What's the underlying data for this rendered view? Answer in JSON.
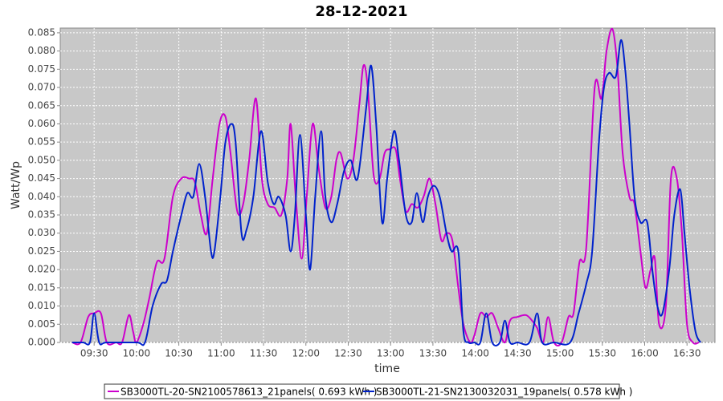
{
  "chart_data": {
    "type": "line",
    "title": "28-12-2021",
    "x_label": "time",
    "y_label": "Watt/Wp",
    "xlim": [
      9.1,
      16.83
    ],
    "ylim": [
      0,
      0.0863
    ],
    "grid": true,
    "legend": "bottom",
    "xticks": [
      {
        "value": 9.5,
        "label": "09:30"
      },
      {
        "value": 10,
        "label": "10:00"
      },
      {
        "value": 10.5,
        "label": "10:30"
      },
      {
        "value": 11,
        "label": "11:00"
      },
      {
        "value": 11.5,
        "label": "11:30"
      },
      {
        "value": 12,
        "label": "12:00"
      },
      {
        "value": 12.5,
        "label": "12:30"
      },
      {
        "value": 13,
        "label": "13:00"
      },
      {
        "value": 13.5,
        "label": "13:30"
      },
      {
        "value": 14,
        "label": "14:00"
      },
      {
        "value": 14.5,
        "label": "14:30"
      },
      {
        "value": 15,
        "label": "15:00"
      },
      {
        "value": 15.5,
        "label": "15:30"
      },
      {
        "value": 16,
        "label": "16:00"
      },
      {
        "value": 16.5,
        "label": "16:30"
      }
    ],
    "yticks": [
      {
        "value": 0,
        "label": "0.000"
      },
      {
        "value": 0.005,
        "label": "0.005"
      },
      {
        "value": 0.01,
        "label": "0.010"
      },
      {
        "value": 0.015,
        "label": "0.015"
      },
      {
        "value": 0.02,
        "label": "0.020"
      },
      {
        "value": 0.025,
        "label": "0.025"
      },
      {
        "value": 0.03,
        "label": "0.030"
      },
      {
        "value": 0.035,
        "label": "0.035"
      },
      {
        "value": 0.04,
        "label": "0.040"
      },
      {
        "value": 0.045,
        "label": "0.045"
      },
      {
        "value": 0.05,
        "label": "0.050"
      },
      {
        "value": 0.055,
        "label": "0.055"
      },
      {
        "value": 0.06,
        "label": "0.060"
      },
      {
        "value": 0.065,
        "label": "0.065"
      },
      {
        "value": 0.07,
        "label": "0.070"
      },
      {
        "value": 0.075,
        "label": "0.075"
      },
      {
        "value": 0.08,
        "label": "0.080"
      },
      {
        "value": 0.085,
        "label": "0.085"
      }
    ],
    "series": [
      {
        "name": "SB3000TL-20-SN2100578613_21panels( 0.693 kWh )",
        "color": "#cc00cc",
        "x": [
          9.24,
          9.34,
          9.43,
          9.5,
          9.58,
          9.65,
          9.76,
          9.83,
          9.91,
          9.96,
          10.0,
          10.08,
          10.15,
          10.24,
          10.33,
          10.43,
          10.53,
          10.62,
          10.69,
          10.76,
          10.83,
          10.9,
          10.98,
          11.05,
          11.11,
          11.19,
          11.26,
          11.33,
          11.41,
          11.48,
          11.55,
          11.63,
          11.71,
          11.78,
          11.82,
          11.88,
          11.95,
          12.01,
          12.08,
          12.15,
          12.23,
          12.3,
          12.36,
          12.41,
          12.49,
          12.56,
          12.63,
          12.68,
          12.73,
          12.8,
          12.87,
          12.93,
          12.99,
          13.06,
          13.11,
          13.18,
          13.25,
          13.32,
          13.39,
          13.46,
          13.53,
          13.6,
          13.66,
          13.73,
          13.8,
          13.86,
          13.94,
          13.99,
          14.06,
          14.13,
          14.2,
          14.27,
          14.35,
          14.41,
          14.5,
          14.6,
          14.67,
          14.73,
          14.8,
          14.86,
          14.93,
          15.02,
          15.1,
          15.16,
          15.23,
          15.31,
          15.41,
          15.49,
          15.55,
          15.62,
          15.68,
          15.74,
          15.82,
          15.88,
          15.95,
          16.01,
          16.07,
          16.12,
          16.17,
          16.25,
          16.31,
          16.38,
          16.44,
          16.5,
          16.57,
          16.64
        ],
        "values": [
          0,
          0,
          0.007,
          0.008,
          0.008,
          0,
          0,
          0,
          0.0075,
          0.003,
          0,
          0.005,
          0.012,
          0.022,
          0.023,
          0.04,
          0.045,
          0.045,
          0.044,
          0.035,
          0.03,
          0.045,
          0.06,
          0.062,
          0.052,
          0.036,
          0.038,
          0.05,
          0.067,
          0.045,
          0.038,
          0.037,
          0.035,
          0.045,
          0.06,
          0.04,
          0.023,
          0.04,
          0.06,
          0.048,
          0.037,
          0.04,
          0.05,
          0.052,
          0.045,
          0.05,
          0.065,
          0.076,
          0.07,
          0.046,
          0.045,
          0.052,
          0.053,
          0.053,
          0.045,
          0.036,
          0.038,
          0.037,
          0.04,
          0.045,
          0.038,
          0.028,
          0.03,
          0.028,
          0.015,
          0.005,
          0,
          0.002,
          0.008,
          0.007,
          0.008,
          0.004,
          0,
          0.006,
          0.007,
          0.0075,
          0.006,
          0.004,
          0,
          0.007,
          0,
          0,
          0.007,
          0.008,
          0.022,
          0.026,
          0.07,
          0.067,
          0.08,
          0.086,
          0.075,
          0.052,
          0.04,
          0.038,
          0.025,
          0.015,
          0.02,
          0.023,
          0.005,
          0.01,
          0.045,
          0.045,
          0.03,
          0.005,
          0,
          0
        ]
      },
      {
        "name": "SB3000TL-21-SN2130032031_19panels( 0.578 kWh )",
        "color": "#0022cc",
        "x": [
          9.24,
          9.37,
          9.45,
          9.5,
          9.56,
          9.65,
          10.0,
          10.1,
          10.19,
          10.29,
          10.36,
          10.43,
          10.53,
          10.6,
          10.67,
          10.74,
          10.81,
          10.88,
          10.92,
          10.99,
          11.05,
          11.12,
          11.17,
          11.24,
          11.3,
          11.38,
          11.47,
          11.55,
          11.62,
          11.68,
          11.76,
          11.82,
          11.87,
          11.93,
          12.0,
          12.05,
          12.11,
          12.18,
          12.23,
          12.3,
          12.37,
          12.45,
          12.53,
          12.61,
          12.71,
          12.77,
          12.83,
          12.9,
          12.96,
          13.04,
          13.1,
          13.18,
          13.25,
          13.31,
          13.38,
          13.44,
          13.51,
          13.58,
          13.66,
          13.72,
          13.8,
          13.86,
          13.92,
          13.99,
          14.06,
          14.13,
          14.2,
          14.29,
          14.35,
          14.41,
          14.5,
          14.64,
          14.73,
          14.79,
          14.93,
          15.12,
          15.22,
          15.31,
          15.38,
          15.46,
          15.52,
          15.58,
          15.66,
          15.72,
          15.77,
          15.82,
          15.88,
          15.95,
          16.03,
          16.09,
          16.15,
          16.21,
          16.29,
          16.35,
          16.42,
          16.47,
          16.53,
          16.6,
          16.66
        ],
        "values": [
          0,
          0,
          0,
          0.008,
          0,
          0,
          0,
          0,
          0.01,
          0.016,
          0.017,
          0.025,
          0.035,
          0.041,
          0.04,
          0.049,
          0.04,
          0.025,
          0.025,
          0.04,
          0.055,
          0.06,
          0.055,
          0.03,
          0.031,
          0.04,
          0.058,
          0.044,
          0.038,
          0.04,
          0.035,
          0.025,
          0.035,
          0.057,
          0.035,
          0.02,
          0.04,
          0.058,
          0.04,
          0.033,
          0.038,
          0.047,
          0.05,
          0.045,
          0.064,
          0.076,
          0.06,
          0.033,
          0.045,
          0.058,
          0.05,
          0.035,
          0.033,
          0.041,
          0.033,
          0.04,
          0.043,
          0.04,
          0.03,
          0.025,
          0.025,
          0.003,
          0,
          0,
          0,
          0.008,
          0,
          0,
          0.006,
          0,
          0,
          0,
          0.008,
          0,
          0,
          0,
          0.008,
          0.016,
          0.025,
          0.055,
          0.07,
          0.074,
          0.073,
          0.083,
          0.075,
          0.06,
          0.04,
          0.033,
          0.033,
          0.02,
          0.01,
          0.008,
          0.02,
          0.035,
          0.042,
          0.03,
          0.015,
          0.003,
          0
        ]
      }
    ]
  }
}
